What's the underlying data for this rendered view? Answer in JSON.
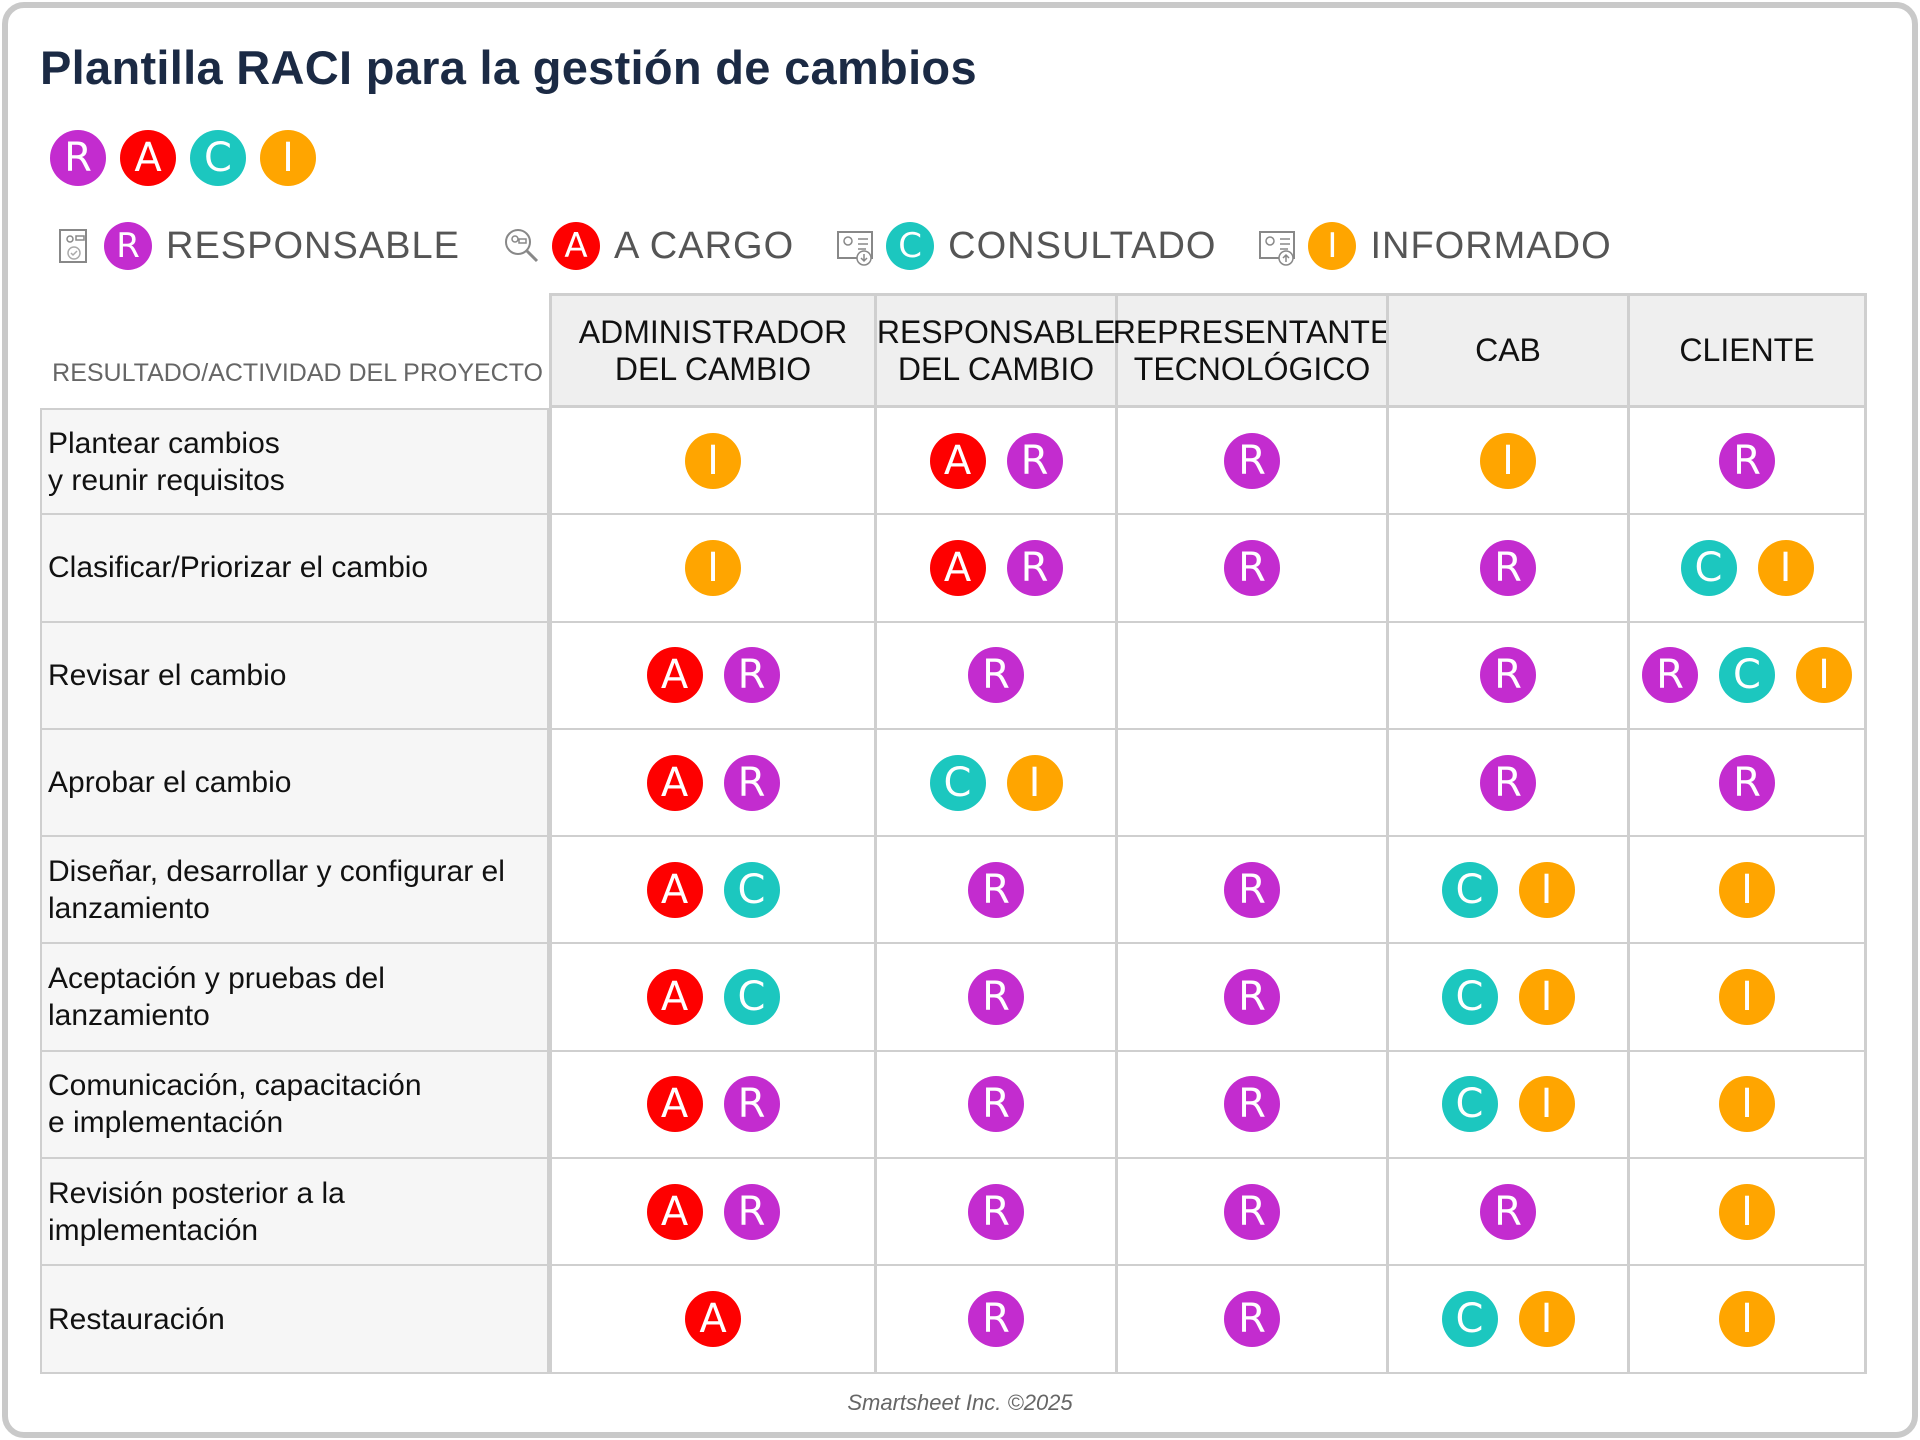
{
  "title": "Plantilla RACI para la gestión de cambios",
  "colors": {
    "R": "#c32ccf",
    "A": "#fe0000",
    "C": "#1cc7bf",
    "I": "#ffa500"
  },
  "raci_letters": [
    "R",
    "A",
    "C",
    "I"
  ],
  "legend": [
    {
      "letter": "R",
      "label": "RESPONSABLE",
      "icon": "document-check-icon"
    },
    {
      "letter": "A",
      "label": "A CARGO",
      "icon": "magnifier-people-icon"
    },
    {
      "letter": "C",
      "label": "CONSULTADO",
      "icon": "contact-card-download-icon"
    },
    {
      "letter": "I",
      "label": "INFORMADO",
      "icon": "contact-card-upload-icon"
    }
  ],
  "table": {
    "row_header": "RESULTADO/ACTIVIDAD DEL PROYECTO",
    "columns": [
      "ADMINISTRADOR\nDEL CAMBIO",
      "RESPONSABLE\nDEL CAMBIO",
      "REPRESENTANTE\nTECNOLÓGICO",
      "CAB",
      "CLIENTE"
    ],
    "rows": [
      {
        "label": "Plantear cambios\ny reunir requisitos",
        "cells": [
          [
            "I"
          ],
          [
            "A",
            "R"
          ],
          [
            "R"
          ],
          [
            "I"
          ],
          [
            "R"
          ]
        ]
      },
      {
        "label": "Clasificar/Priorizar el cambio",
        "cells": [
          [
            "I"
          ],
          [
            "A",
            "R"
          ],
          [
            "R"
          ],
          [
            "R"
          ],
          [
            "C",
            "I"
          ]
        ]
      },
      {
        "label": "Revisar el cambio",
        "cells": [
          [
            "A",
            "R"
          ],
          [
            "R"
          ],
          [],
          [
            "R"
          ],
          [
            "R",
            "C",
            "I"
          ]
        ]
      },
      {
        "label": "Aprobar el cambio",
        "cells": [
          [
            "A",
            "R"
          ],
          [
            "C",
            "I"
          ],
          [],
          [
            "R"
          ],
          [
            "R"
          ]
        ]
      },
      {
        "label": "Diseñar, desarrollar y configurar el\nlanzamiento",
        "cells": [
          [
            "A",
            "C"
          ],
          [
            "R"
          ],
          [
            "R"
          ],
          [
            "C",
            "I"
          ],
          [
            "I"
          ]
        ]
      },
      {
        "label": "Aceptación y pruebas del\nlanzamiento",
        "cells": [
          [
            "A",
            "C"
          ],
          [
            "R"
          ],
          [
            "R"
          ],
          [
            "C",
            "I"
          ],
          [
            "I"
          ]
        ]
      },
      {
        "label": "Comunicación, capacitación\ne implementación",
        "cells": [
          [
            "A",
            "R"
          ],
          [
            "R"
          ],
          [
            "R"
          ],
          [
            "C",
            "I"
          ],
          [
            "I"
          ]
        ]
      },
      {
        "label": "Revisión posterior a la\nimplementación",
        "cells": [
          [
            "A",
            "R"
          ],
          [
            "R"
          ],
          [
            "R"
          ],
          [
            "R"
          ],
          [
            "I"
          ]
        ]
      },
      {
        "label": "Restauración",
        "cells": [
          [
            "A"
          ],
          [
            "R"
          ],
          [
            "R"
          ],
          [
            "C",
            "I"
          ],
          [
            "I"
          ]
        ]
      }
    ]
  },
  "footer": "Smartsheet Inc. ©2025"
}
